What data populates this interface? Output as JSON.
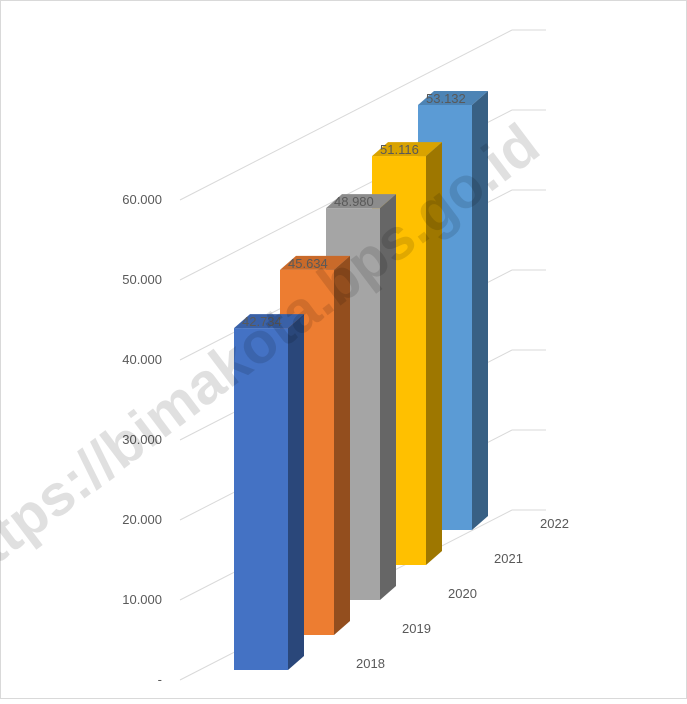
{
  "chart_data": {
    "type": "bar",
    "title": "",
    "xlabel": "",
    "ylabel": "",
    "categories": [
      "2018",
      "2019",
      "2020",
      "2021",
      "2022"
    ],
    "values": [
      42734,
      45634,
      48980,
      51116,
      53132
    ],
    "value_labels": [
      "42.734",
      "45.634",
      "48.980",
      "51.116",
      "53.132"
    ],
    "y_ticks": [
      "-",
      "10.000",
      "20.000",
      "30.000",
      "40.000",
      "50.000",
      "60.000"
    ],
    "ylim": [
      0,
      60000
    ],
    "grid": true,
    "legend": "none",
    "colors": [
      "#4472C4",
      "#ED7D31",
      "#A5A5A5",
      "#FFC000",
      "#5B9BD5"
    ]
  },
  "watermark": "https://bimakota.bps.go.id"
}
